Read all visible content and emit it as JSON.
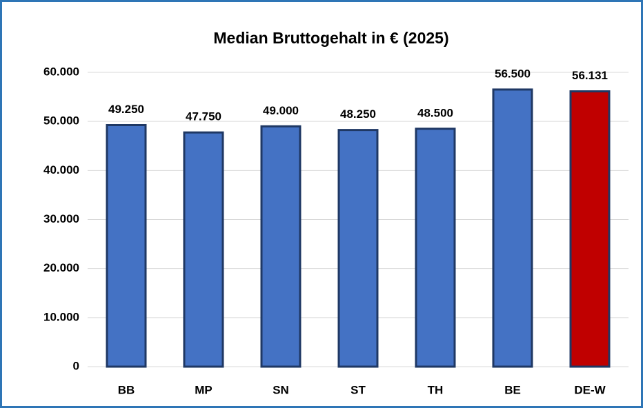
{
  "chart_data": {
    "type": "bar",
    "title": "Median Bruttogehalt in € (2025)",
    "categories": [
      "BB",
      "MP",
      "SN",
      "ST",
      "TH",
      "BE",
      "DE-W"
    ],
    "values": [
      49250,
      47750,
      49000,
      48250,
      48500,
      56500,
      56131
    ],
    "value_labels": [
      "49.250",
      "47.750",
      "49.000",
      "48.250",
      "48.500",
      "56.500",
      "56.131"
    ],
    "colors": [
      "#4472c4",
      "#4472c4",
      "#4472c4",
      "#4472c4",
      "#4472c4",
      "#4472c4",
      "#c00000"
    ],
    "edgecolor": "#1f3864",
    "ylim": [
      0,
      60000
    ],
    "yticks": [
      0,
      {
        "value": 10000,
        "label": "10.000"
      },
      {
        "value": 20000,
        "label": "20.000"
      },
      {
        "value": 30000,
        "label": "30.000"
      },
      {
        "value": 40000,
        "label": "40.000"
      },
      {
        "value": 50000,
        "label": "50.000"
      },
      {
        "value": 60000,
        "label": "60.000"
      }
    ],
    "grid": true
  }
}
